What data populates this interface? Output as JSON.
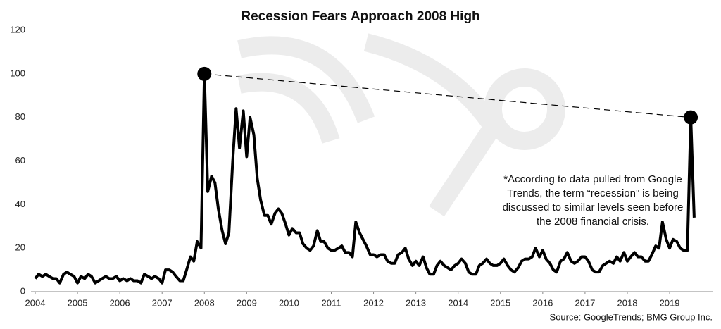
{
  "chart_data": {
    "type": "line",
    "title": "Recession Fears Approach 2008 High",
    "annotation": [
      "*According to data pulled from Google",
      "Trends, the term “recession” is being",
      "discussed to similar levels seen before",
      "the 2008 financial crisis."
    ],
    "source": "Source: GoogleTrends; BMG Group Inc.",
    "x": [
      2004,
      2004.08,
      2004.17,
      2004.25,
      2004.33,
      2004.42,
      2004.5,
      2004.58,
      2004.67,
      2004.75,
      2004.83,
      2004.92,
      2005,
      2005.08,
      2005.17,
      2005.25,
      2005.33,
      2005.42,
      2005.5,
      2005.58,
      2005.67,
      2005.75,
      2005.83,
      2005.92,
      2006,
      2006.08,
      2006.17,
      2006.25,
      2006.33,
      2006.42,
      2006.5,
      2006.58,
      2006.67,
      2006.75,
      2006.83,
      2006.92,
      2007,
      2007.08,
      2007.17,
      2007.25,
      2007.33,
      2007.42,
      2007.5,
      2007.58,
      2007.67,
      2007.75,
      2007.83,
      2007.92,
      2008,
      2008.08,
      2008.17,
      2008.25,
      2008.33,
      2008.42,
      2008.5,
      2008.58,
      2008.67,
      2008.75,
      2008.83,
      2008.92,
      2009,
      2009.08,
      2009.17,
      2009.25,
      2009.33,
      2009.42,
      2009.5,
      2009.58,
      2009.67,
      2009.75,
      2009.83,
      2009.92,
      2010,
      2010.08,
      2010.17,
      2010.25,
      2010.33,
      2010.42,
      2010.5,
      2010.58,
      2010.67,
      2010.75,
      2010.83,
      2010.92,
      2011,
      2011.08,
      2011.17,
      2011.25,
      2011.33,
      2011.42,
      2011.5,
      2011.58,
      2011.67,
      2011.75,
      2011.83,
      2011.92,
      2012,
      2012.08,
      2012.17,
      2012.25,
      2012.33,
      2012.42,
      2012.5,
      2012.58,
      2012.67,
      2012.75,
      2012.83,
      2012.92,
      2013,
      2013.08,
      2013.17,
      2013.25,
      2013.33,
      2013.42,
      2013.5,
      2013.58,
      2013.67,
      2013.75,
      2013.83,
      2013.92,
      2014,
      2014.08,
      2014.17,
      2014.25,
      2014.33,
      2014.42,
      2014.5,
      2014.58,
      2014.67,
      2014.75,
      2014.83,
      2014.92,
      2015,
      2015.08,
      2015.17,
      2015.25,
      2015.33,
      2015.42,
      2015.5,
      2015.58,
      2015.67,
      2015.75,
      2015.83,
      2015.92,
      2016,
      2016.08,
      2016.17,
      2016.25,
      2016.33,
      2016.42,
      2016.5,
      2016.58,
      2016.67,
      2016.75,
      2016.83,
      2016.92,
      2017,
      2017.08,
      2017.17,
      2017.25,
      2017.33,
      2017.42,
      2017.5,
      2017.58,
      2017.67,
      2017.75,
      2017.83,
      2017.92,
      2018,
      2018.08,
      2018.17,
      2018.25,
      2018.33,
      2018.42,
      2018.5,
      2018.58,
      2018.67,
      2018.75,
      2018.83,
      2018.92,
      2019,
      2019.08,
      2019.17,
      2019.25,
      2019.33,
      2019.42,
      2019.5,
      2019.58
    ],
    "series": [
      {
        "name": "recession",
        "color": "#000000",
        "values": [
          6,
          8,
          7,
          8,
          7,
          6,
          6,
          4,
          8,
          9,
          8,
          7,
          4,
          7,
          6,
          8,
          7,
          4,
          5,
          6,
          7,
          6,
          6,
          7,
          5,
          6,
          5,
          6,
          5,
          5,
          4,
          8,
          7,
          6,
          7,
          6,
          4,
          10,
          10,
          9,
          7,
          5,
          5,
          10,
          16,
          14,
          23,
          20,
          100,
          46,
          53,
          50,
          38,
          28,
          22,
          27,
          60,
          84,
          66,
          83,
          62,
          80,
          72,
          52,
          42,
          35,
          35,
          31,
          36,
          38,
          36,
          31,
          26,
          29,
          27,
          27,
          22,
          20,
          19,
          21,
          28,
          23,
          23,
          20,
          19,
          19,
          20,
          21,
          18,
          18,
          16,
          32,
          27,
          24,
          21,
          17,
          17,
          16,
          17,
          17,
          14,
          13,
          13,
          17,
          18,
          20,
          15,
          12,
          14,
          12,
          16,
          11,
          8,
          8,
          12,
          14,
          12,
          11,
          10,
          12,
          13,
          15,
          13,
          9,
          8,
          8,
          12,
          13,
          15,
          13,
          12,
          12,
          13,
          15,
          12,
          10,
          9,
          11,
          14,
          15,
          15,
          16,
          20,
          16,
          19,
          15,
          13,
          10,
          9,
          14,
          15,
          18,
          14,
          13,
          14,
          16,
          16,
          14,
          10,
          9,
          9,
          12,
          13,
          14,
          13,
          16,
          14,
          18,
          14,
          16,
          18,
          16,
          16,
          14,
          14,
          17,
          21,
          20,
          32,
          24,
          20,
          24,
          23,
          20,
          19,
          19,
          80,
          34
        ]
      }
    ],
    "xlim": [
      2004,
      2019.75
    ],
    "xticks": [
      2004,
      2005,
      2006,
      2007,
      2008,
      2009,
      2010,
      2011,
      2012,
      2013,
      2014,
      2015,
      2016,
      2017,
      2018,
      2019
    ],
    "ylim": [
      0,
      120
    ],
    "yticks": [
      0,
      20,
      40,
      60,
      80,
      100,
      120
    ],
    "grid": false
  }
}
